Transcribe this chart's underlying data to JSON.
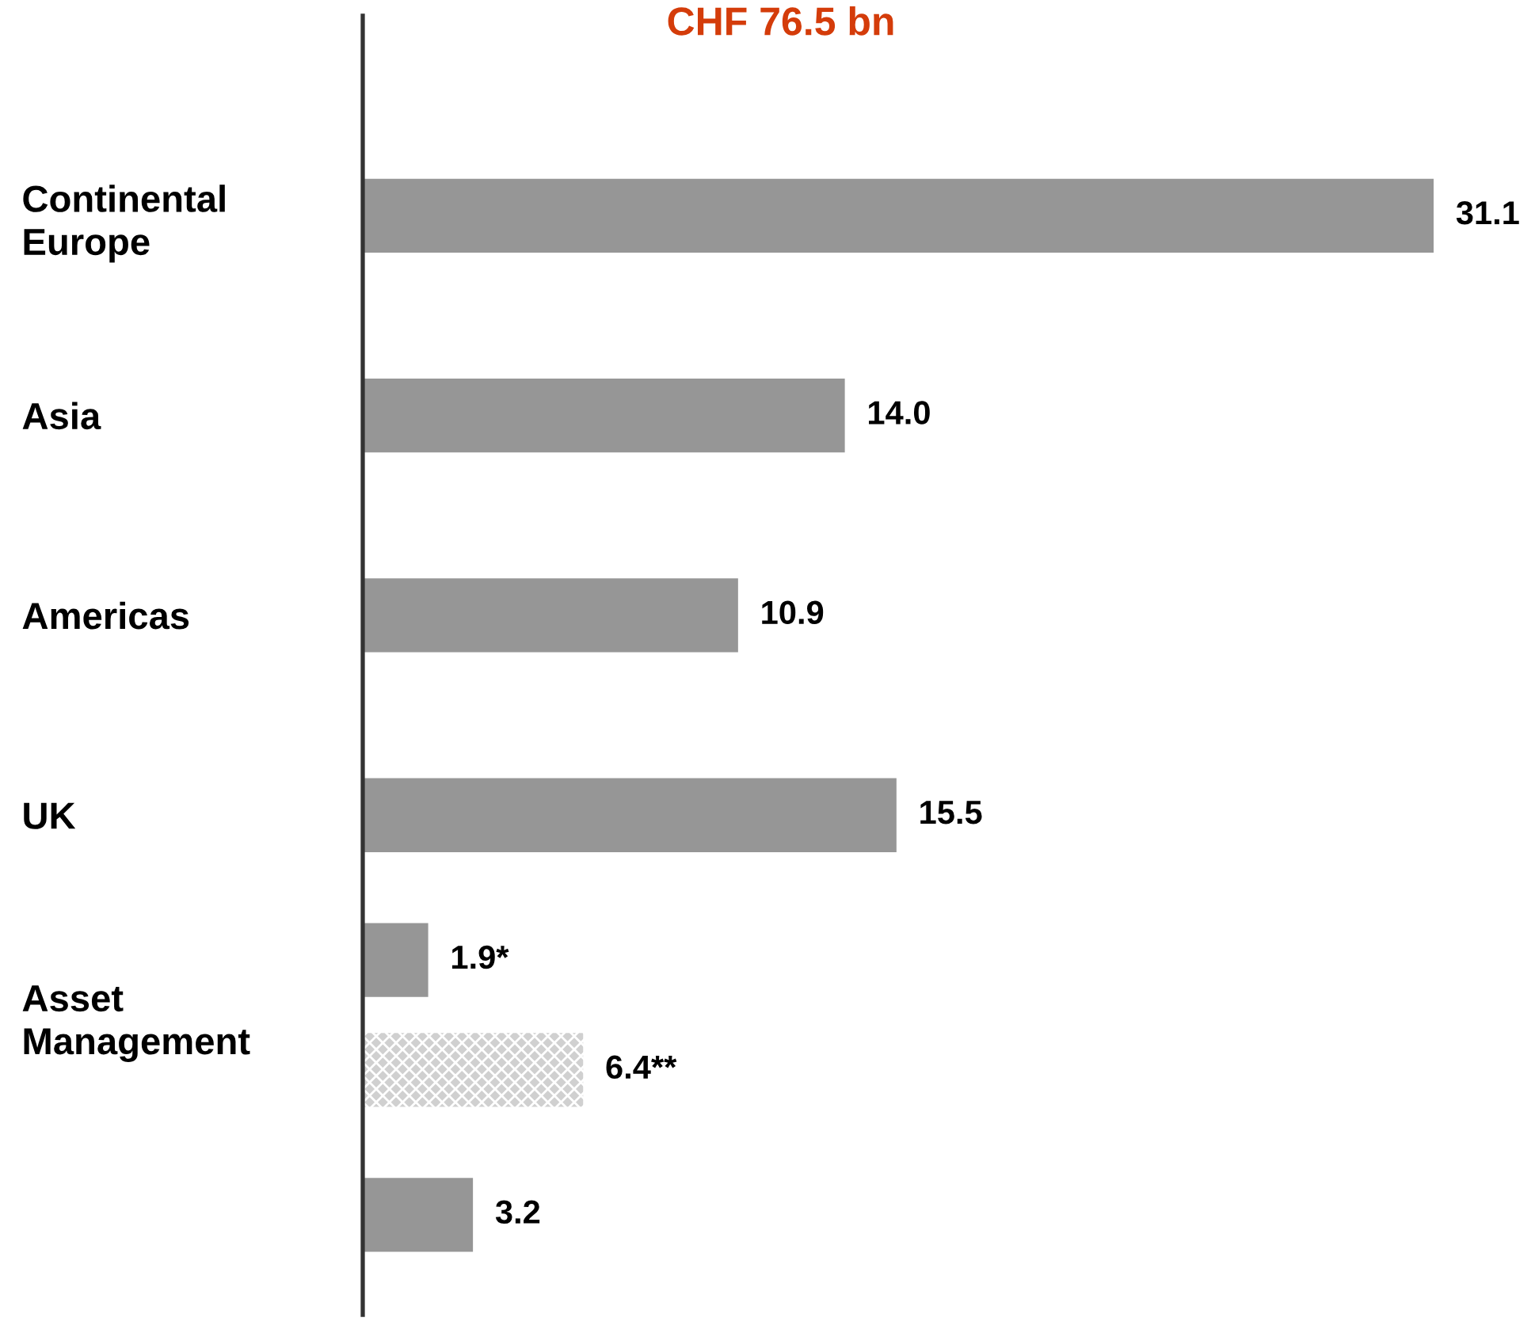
{
  "chart_data": {
    "type": "bar",
    "orientation": "horizontal",
    "title": "CHF 76.5 bn",
    "categories": [
      "Continental Europe",
      "Asia",
      "Americas",
      "UK",
      "Asset Management",
      null
    ],
    "series": [
      {
        "color": "#969696",
        "values": [
          31.1,
          14.0,
          10.9,
          15.5,
          1.9,
          3.2
        ],
        "value_labels": [
          "31.1",
          "14.0",
          "10.9",
          "15.5",
          "1.9*",
          "3.2"
        ]
      },
      {
        "color": "#d0d0d0",
        "values": [
          null,
          null,
          null,
          null,
          6.4,
          null
        ],
        "value_labels": [
          null,
          null,
          null,
          null,
          "6.4**",
          null
        ]
      }
    ],
    "tick_labels": "y"
  }
}
